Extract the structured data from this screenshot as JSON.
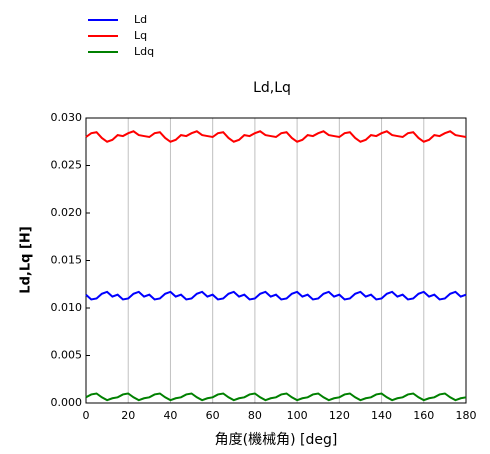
{
  "chart_data": {
    "type": "line",
    "title": "Ld,Lq",
    "x_label": "角度(機械角) [deg]",
    "y_label": "Ld,Lq [H]",
    "x": [
      0,
      2.5,
      5,
      7.5,
      10,
      12.5,
      15,
      17.5,
      20,
      22.5,
      25,
      27.5,
      30,
      32.5,
      35,
      37.5,
      40,
      42.5,
      45,
      47.5,
      50,
      52.5,
      55,
      57.5,
      60,
      62.5,
      65,
      67.5,
      70,
      72.5,
      75,
      77.5,
      80,
      82.5,
      85,
      87.5,
      90,
      92.5,
      95,
      97.5,
      100,
      102.5,
      105,
      107.5,
      110,
      112.5,
      115,
      117.5,
      120,
      122.5,
      125,
      127.5,
      130,
      132.5,
      135,
      137.5,
      140,
      142.5,
      145,
      147.5,
      150,
      152.5,
      155,
      157.5,
      160,
      162.5,
      165,
      167.5,
      170,
      172.5,
      175,
      177.5,
      180
    ],
    "series": [
      {
        "name": "Ld",
        "color": "#0000ff",
        "values": [
          0.0114,
          0.0109,
          0.011,
          0.0115,
          0.0117,
          0.0112,
          0.0114,
          0.0109,
          0.011,
          0.0115,
          0.0117,
          0.0112,
          0.0114,
          0.0109,
          0.011,
          0.0115,
          0.0117,
          0.0112,
          0.0114,
          0.0109,
          0.011,
          0.0115,
          0.0117,
          0.0112,
          0.0114,
          0.0109,
          0.011,
          0.0115,
          0.0117,
          0.0112,
          0.0114,
          0.0109,
          0.011,
          0.0115,
          0.0117,
          0.0112,
          0.0114,
          0.0109,
          0.011,
          0.0115,
          0.0117,
          0.0112,
          0.0114,
          0.0109,
          0.011,
          0.0115,
          0.0117,
          0.0112,
          0.0114,
          0.0109,
          0.011,
          0.0115,
          0.0117,
          0.0112,
          0.0114,
          0.0109,
          0.011,
          0.0115,
          0.0117,
          0.0112,
          0.0114,
          0.0109,
          0.011,
          0.0115,
          0.0117,
          0.0112,
          0.0114,
          0.0109,
          0.011,
          0.0115,
          0.0117,
          0.0112,
          0.0114
        ]
      },
      {
        "name": "Lq",
        "color": "#ff0000",
        "values": [
          0.028,
          0.0284,
          0.0285,
          0.0279,
          0.0275,
          0.0277,
          0.0282,
          0.0281,
          0.0284,
          0.0286,
          0.0282,
          0.0281,
          0.028,
          0.0284,
          0.0285,
          0.0279,
          0.0275,
          0.0277,
          0.0282,
          0.0281,
          0.0284,
          0.0286,
          0.0282,
          0.0281,
          0.028,
          0.0284,
          0.0285,
          0.0279,
          0.0275,
          0.0277,
          0.0282,
          0.0281,
          0.0284,
          0.0286,
          0.0282,
          0.0281,
          0.028,
          0.0284,
          0.0285,
          0.0279,
          0.0275,
          0.0277,
          0.0282,
          0.0281,
          0.0284,
          0.0286,
          0.0282,
          0.0281,
          0.028,
          0.0284,
          0.0285,
          0.0279,
          0.0275,
          0.0277,
          0.0282,
          0.0281,
          0.0284,
          0.0286,
          0.0282,
          0.0281,
          0.028,
          0.0284,
          0.0285,
          0.0279,
          0.0275,
          0.0277,
          0.0282,
          0.0281,
          0.0284,
          0.0286,
          0.0282,
          0.0281,
          0.028
        ]
      },
      {
        "name": "Ldq",
        "color": "#008000",
        "values": [
          0.0006,
          0.0009,
          0.001,
          0.0006,
          0.0003,
          0.0005,
          0.0006,
          0.0009,
          0.001,
          0.0006,
          0.0003,
          0.0005,
          0.0006,
          0.0009,
          0.001,
          0.0006,
          0.0003,
          0.0005,
          0.0006,
          0.0009,
          0.001,
          0.0006,
          0.0003,
          0.0005,
          0.0006,
          0.0009,
          0.001,
          0.0006,
          0.0003,
          0.0005,
          0.0006,
          0.0009,
          0.001,
          0.0006,
          0.0003,
          0.0005,
          0.0006,
          0.0009,
          0.001,
          0.0006,
          0.0003,
          0.0005,
          0.0006,
          0.0009,
          0.001,
          0.0006,
          0.0003,
          0.0005,
          0.0006,
          0.0009,
          0.001,
          0.0006,
          0.0003,
          0.0005,
          0.0006,
          0.0009,
          0.001,
          0.0006,
          0.0003,
          0.0005,
          0.0006,
          0.0009,
          0.001,
          0.0006,
          0.0003,
          0.0005,
          0.0006,
          0.0009,
          0.001,
          0.0006,
          0.0003,
          0.0005,
          0.0006
        ]
      }
    ],
    "xlim": [
      0,
      180
    ],
    "xticks": [
      0,
      20,
      40,
      60,
      80,
      100,
      120,
      140,
      160,
      180
    ],
    "ylim": [
      0,
      0.03
    ],
    "yticks": [
      {
        "value": 0,
        "label": "0.000"
      },
      {
        "value": 0.005,
        "label": "0.005"
      },
      {
        "value": 0.01,
        "label": "0.010"
      },
      {
        "value": 0.015,
        "label": "0.015"
      },
      {
        "value": 0.02,
        "label": "0.020"
      },
      {
        "value": 0.025,
        "label": "0.025"
      },
      {
        "value": 0.03,
        "label": "0.030"
      }
    ],
    "grid": "x",
    "legend": "top-left"
  }
}
